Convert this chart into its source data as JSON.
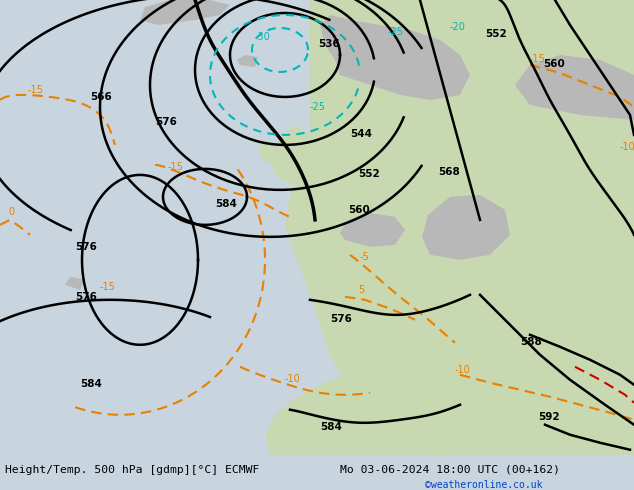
{
  "title_left": "Height/Temp. 500 hPa [gdmp][°C] ECMWF",
  "title_right": "Mo 03-06-2024 18:00 UTC (00+162)",
  "credit": "©weatheronline.co.uk",
  "ocean_color": "#c8d4de",
  "land_green_color": "#c8d8b0",
  "land_gray_color": "#b8b8b8",
  "bar_color": "#d8d8d8",
  "black": "#000000",
  "cyan": "#00b8b8",
  "orange": "#e88000",
  "red": "#cc0000",
  "figsize": [
    6.34,
    4.9
  ],
  "dpi": 100
}
